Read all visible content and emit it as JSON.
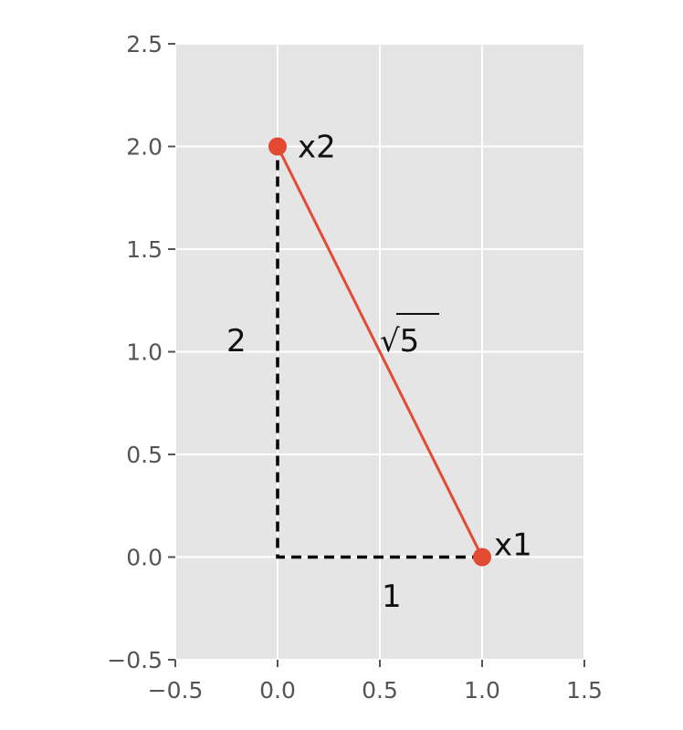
{
  "chart_data": {
    "type": "line",
    "title": "",
    "xlabel": "",
    "ylabel": "",
    "xlim": [
      -0.5,
      1.5
    ],
    "ylim": [
      -0.5,
      2.5
    ],
    "x_ticks": [
      -0.5,
      0.0,
      0.5,
      1.0,
      1.5
    ],
    "y_ticks": [
      -0.5,
      0.0,
      0.5,
      1.0,
      1.5,
      2.0,
      2.5
    ],
    "x_tick_labels": [
      "−0.5",
      "0.0",
      "0.5",
      "1.0",
      "1.5"
    ],
    "y_tick_labels": [
      "−0.5",
      "0.0",
      "0.5",
      "1.0",
      "1.5",
      "2.0",
      "2.5"
    ],
    "grid": true,
    "background": "#e5e5e5",
    "series": [
      {
        "kind": "solid-line",
        "color": "#e24a33",
        "x": [
          1.0,
          0.0
        ],
        "y": [
          0.0,
          2.0
        ]
      },
      {
        "kind": "dashed-line",
        "color": "#000000",
        "x": [
          1.0,
          0.0,
          0.0
        ],
        "y": [
          0.0,
          0.0,
          2.0
        ]
      }
    ],
    "points": [
      {
        "label": "x1",
        "x": 1.0,
        "y": 0.0
      },
      {
        "label": "x2",
        "x": 0.0,
        "y": 2.0
      }
    ],
    "point_color": "#e24a33",
    "annotations": [
      {
        "id": "sqrt5",
        "radical": "√",
        "text": "5",
        "x": 0.5,
        "y": 1.0
      },
      {
        "id": "vertical-leg",
        "text": "2",
        "x": -0.2,
        "y": 1.0
      },
      {
        "id": "horizontal-leg",
        "text": "1",
        "x": 0.55,
        "y": -0.2
      }
    ]
  }
}
